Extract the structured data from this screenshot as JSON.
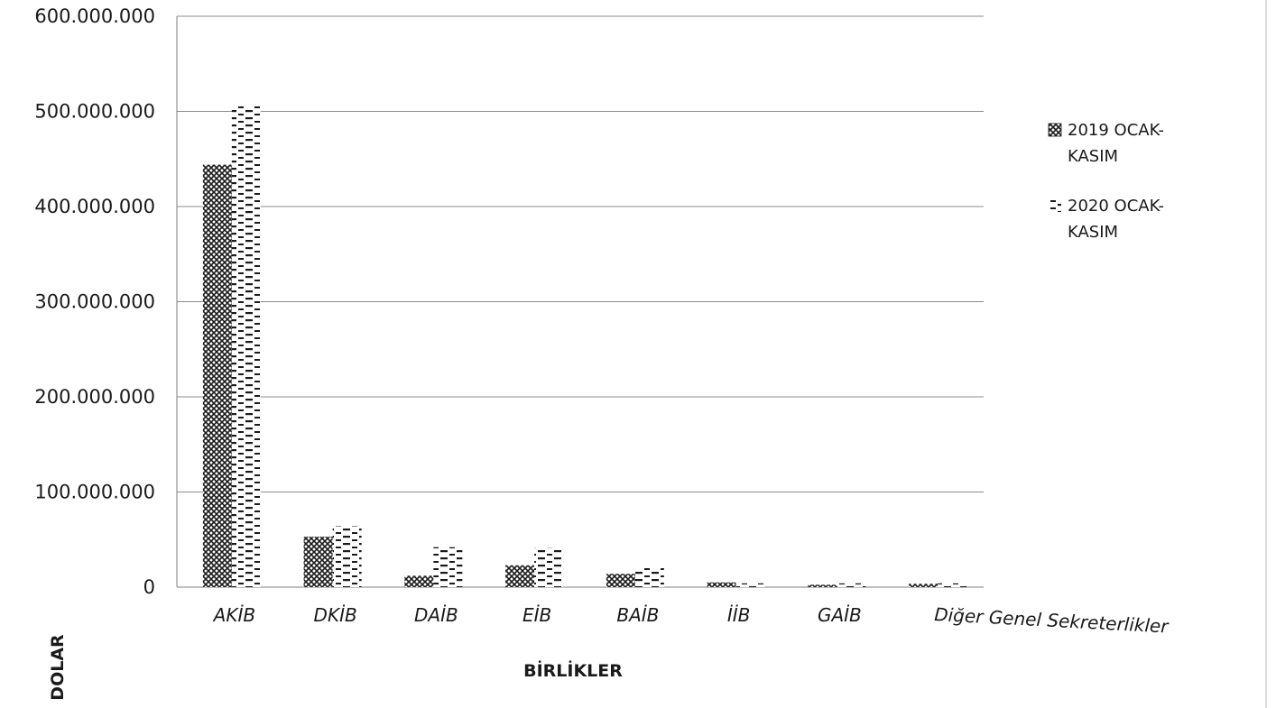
{
  "chart_data": {
    "type": "bar",
    "categories": [
      "AKİB",
      "DKİB",
      "DAİB",
      "EİB",
      "BAİB",
      "İİB",
      "GAİB",
      "Diğer Genel Sekreterlikler"
    ],
    "series": [
      {
        "name": "2019 OCAK-KASIM",
        "values": [
          444000000,
          53000000,
          12000000,
          23000000,
          14000000,
          5000000,
          2500000,
          3500000
        ]
      },
      {
        "name": "2020 OCAK-KASIM",
        "values": [
          506000000,
          64000000,
          42000000,
          41000000,
          20000000,
          4000000,
          4000000,
          4000000
        ]
      }
    ],
    "yticks": [
      "0",
      "100.000.000",
      "200.000.000",
      "300.000.000",
      "400.000.000",
      "500.000.000",
      "600.000.000"
    ],
    "ylim": [
      0,
      600000000
    ],
    "xlabel": "BİRLİKLER",
    "ylabel": "DOLAR",
    "grid": true,
    "legend_position": "right",
    "series_patterns": [
      "cross-hatch",
      "dashes"
    ],
    "colors": {
      "bar_dark": "#1a1a1a",
      "grid": "#8c8c8c",
      "axis": "#7f7f7f"
    }
  }
}
